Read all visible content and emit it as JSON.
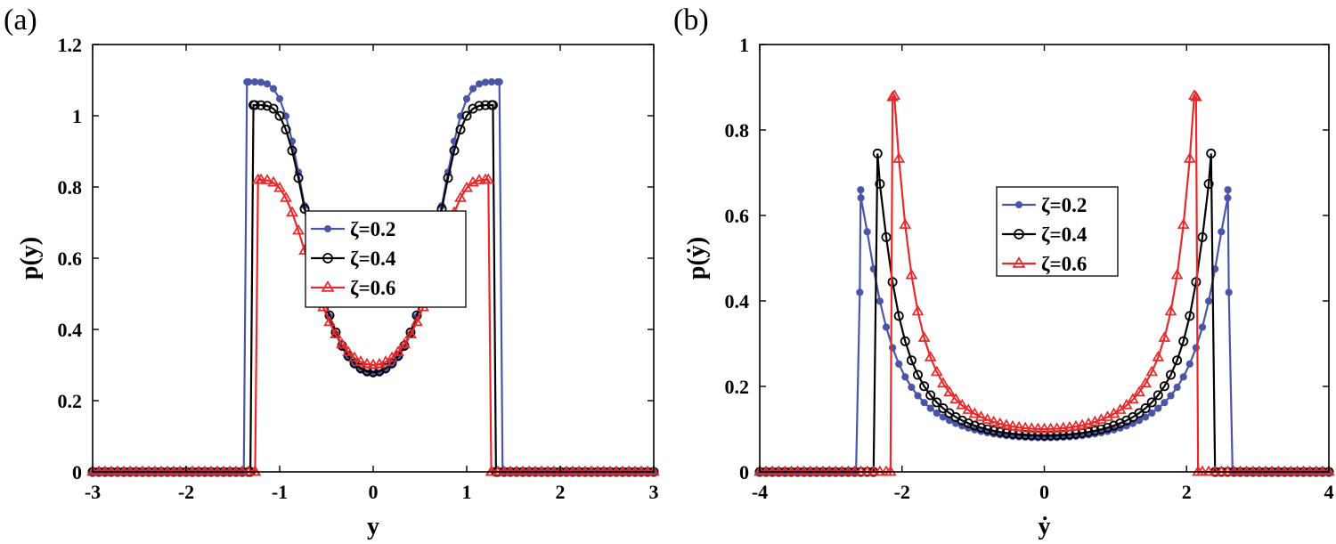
{
  "panels": {
    "a_label": "(a)",
    "b_label": "(b)"
  },
  "colors": {
    "blue": "#4a55a8",
    "black": "#000000",
    "red": "#e8292b"
  },
  "chart_data": [
    {
      "type": "line",
      "panel": "(a)",
      "xlabel": "y",
      "ylabel": "p(y)",
      "xlim": [
        -3,
        3
      ],
      "ylim": [
        0,
        1.2
      ],
      "xticks": [
        -3,
        -2,
        -1,
        0,
        1,
        2,
        3
      ],
      "yticks": [
        0,
        0.2,
        0.4,
        0.6,
        0.8,
        1,
        1.2
      ],
      "xtick_labels": [
        "-3",
        "-2",
        "-1",
        "0",
        "1",
        "2",
        "3"
      ],
      "ytick_labels": [
        "0",
        "0.2",
        "0.4",
        "0.6",
        "0.8",
        "1",
        "1.2"
      ],
      "legend_position": "center",
      "series": [
        {
          "name": "ζ=0.2",
          "marker": "star",
          "color": "#4a55a8",
          "amax": 1.37,
          "peak": 1.095,
          "center": 0.275,
          "shape": 5.5,
          "base_at_edge": false
        },
        {
          "name": "ζ=0.4",
          "marker": "circle",
          "color": "#000000",
          "amax": 1.3,
          "peak": 1.03,
          "center": 0.28,
          "shape": 5.0,
          "base_at_edge": false
        },
        {
          "name": "ζ=0.6",
          "marker": "triangle",
          "color": "#e8292b",
          "amax": 1.25,
          "peak": 0.82,
          "center": 0.3,
          "shape": 4.0,
          "base_at_edge": false
        }
      ]
    },
    {
      "type": "line",
      "panel": "(b)",
      "xlabel": "ẏ",
      "ylabel": "p(ẏ)",
      "xlim": [
        -4,
        4
      ],
      "ylim": [
        0,
        1
      ],
      "xticks": [
        -4,
        -2,
        0,
        2,
        4
      ],
      "yticks": [
        0,
        0.2,
        0.4,
        0.6,
        0.8,
        1
      ],
      "xtick_labels": [
        "-4",
        "-2",
        "0",
        "2",
        "4"
      ],
      "ytick_labels": [
        "0",
        "0.2",
        "0.4",
        "0.6",
        "0.8",
        "1"
      ],
      "legend_position": "center",
      "series": [
        {
          "name": "ζ=0.2",
          "marker": "star",
          "color": "#4a55a8",
          "amax": 2.62,
          "peak": 0.66,
          "center": 0.08,
          "shape": 1.6,
          "base_at_edge": true
        },
        {
          "name": "ζ=0.4",
          "marker": "circle",
          "color": "#000000",
          "amax": 2.38,
          "peak": 0.745,
          "center": 0.085,
          "shape": 1.5,
          "base_at_edge": false
        },
        {
          "name": "ζ=0.6",
          "marker": "triangle",
          "color": "#e8292b",
          "amax": 2.14,
          "peak": 0.88,
          "center": 0.1,
          "shape": 1.5,
          "base_at_edge": false
        }
      ]
    }
  ]
}
